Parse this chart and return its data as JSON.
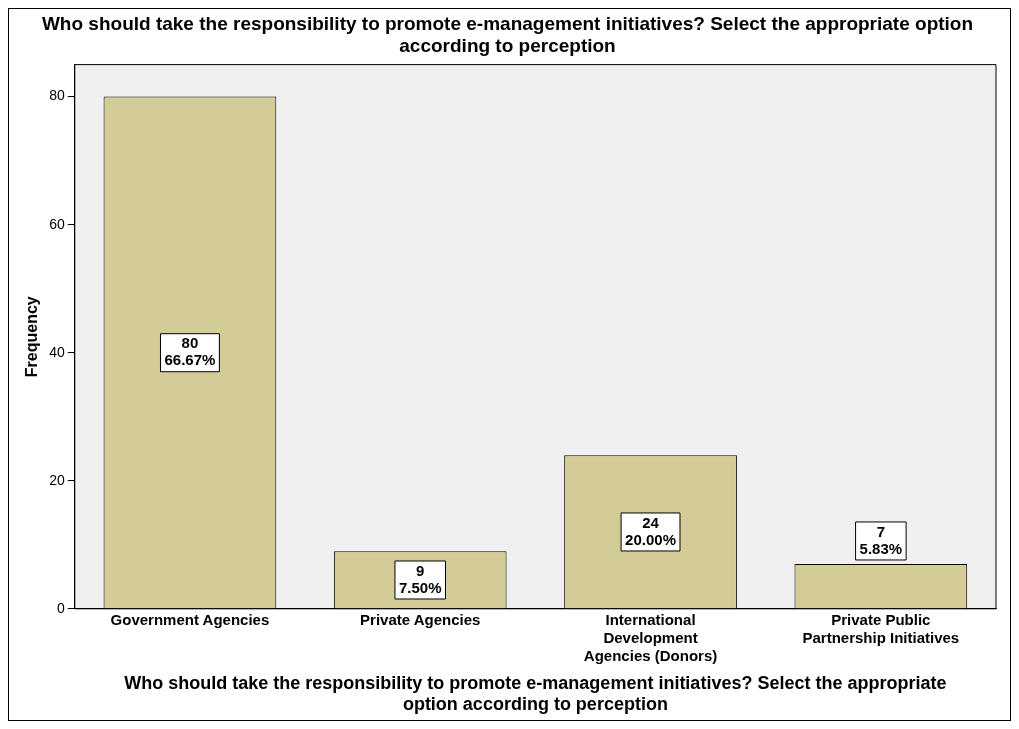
{
  "chart_data": {
    "type": "bar",
    "title": "Who should take the responsibility to promote e-management initiatives? Select the appropriate option according to perception",
    "xlabel": "Who should take the responsibility to promote e-management initiatives? Select the appropriate option according to perception",
    "ylabel": "Frequency",
    "categories": [
      "Government Agencies",
      "Private Agencies",
      "International Development Agencies (Donors)",
      "Private Public Partnership Initiatives"
    ],
    "values": [
      80,
      9,
      24,
      7
    ],
    "color": "#d3cc96",
    "value_labels": [
      "80\n66.67%",
      "9\n7.50%",
      "24\n20.00%",
      "7\n5.83%"
    ],
    "ylim": [
      0,
      85
    ],
    "yticks": [
      0,
      20,
      40,
      60,
      80
    ]
  }
}
